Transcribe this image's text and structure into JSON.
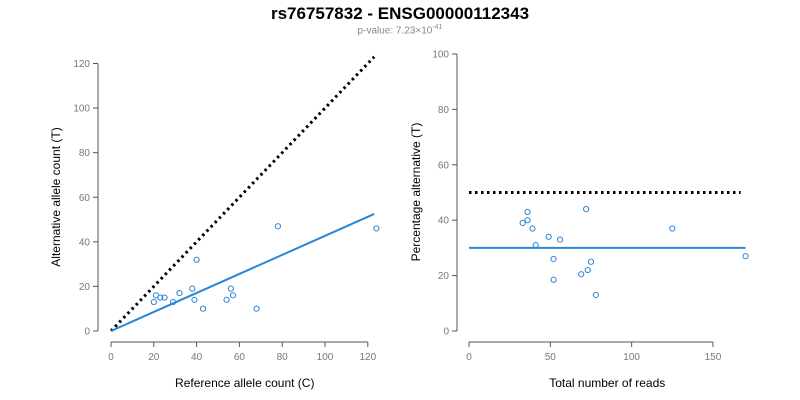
{
  "title": "rs76757832 - ENSG00000112343",
  "subtitle": {
    "prefix": "p-value: 7.23×10",
    "exponent": "-41"
  },
  "colors": {
    "points": "#2a86d6",
    "fit": "#2a86d6",
    "reference": "#000000",
    "axis": "#555555"
  },
  "chart_data": [
    {
      "type": "scatter",
      "xlabel": "Reference allele count (C)",
      "ylabel": "Alternative allele count (T)",
      "xlim": [
        0,
        125
      ],
      "ylim": [
        0,
        120
      ],
      "xticks": [
        0,
        20,
        40,
        60,
        80,
        100,
        120
      ],
      "yticks": [
        0,
        20,
        40,
        60,
        80,
        100,
        120
      ],
      "points": [
        [
          20,
          13
        ],
        [
          21,
          16
        ],
        [
          23,
          15
        ],
        [
          25,
          15
        ],
        [
          29,
          13
        ],
        [
          32,
          17
        ],
        [
          38,
          19
        ],
        [
          39,
          14
        ],
        [
          40,
          32
        ],
        [
          43,
          10
        ],
        [
          54,
          14
        ],
        [
          56,
          19
        ],
        [
          57,
          16
        ],
        [
          68,
          10
        ],
        [
          78,
          47
        ],
        [
          124,
          46
        ]
      ],
      "reference_line": {
        "from": [
          0,
          0
        ],
        "to": [
          123,
          123
        ],
        "style": "dotted"
      },
      "fit_line": {
        "from": [
          0,
          0
        ],
        "to": [
          123,
          52.5
        ],
        "style": "solid"
      }
    },
    {
      "type": "scatter",
      "xlabel": "Total number of reads",
      "ylabel": "Percentage alternative (T)",
      "xlim": [
        0,
        170
      ],
      "ylim": [
        0,
        100
      ],
      "xticks": [
        0,
        50,
        100,
        150
      ],
      "yticks": [
        0,
        20,
        40,
        60,
        80,
        100
      ],
      "points": [
        [
          33,
          39
        ],
        [
          36,
          43
        ],
        [
          36,
          40
        ],
        [
          39,
          37
        ],
        [
          41,
          31
        ],
        [
          49,
          34
        ],
        [
          52,
          26
        ],
        [
          52,
          18.5
        ],
        [
          56,
          33
        ],
        [
          69,
          20.5
        ],
        [
          72,
          44
        ],
        [
          73,
          22
        ],
        [
          75,
          25
        ],
        [
          78,
          13
        ],
        [
          125,
          37
        ],
        [
          170,
          27
        ]
      ],
      "reference_line": {
        "from": [
          0,
          50
        ],
        "to": [
          167,
          50
        ],
        "style": "dotted"
      },
      "fit_line": {
        "from": [
          0,
          30
        ],
        "to": [
          170,
          30
        ],
        "style": "solid"
      }
    }
  ]
}
